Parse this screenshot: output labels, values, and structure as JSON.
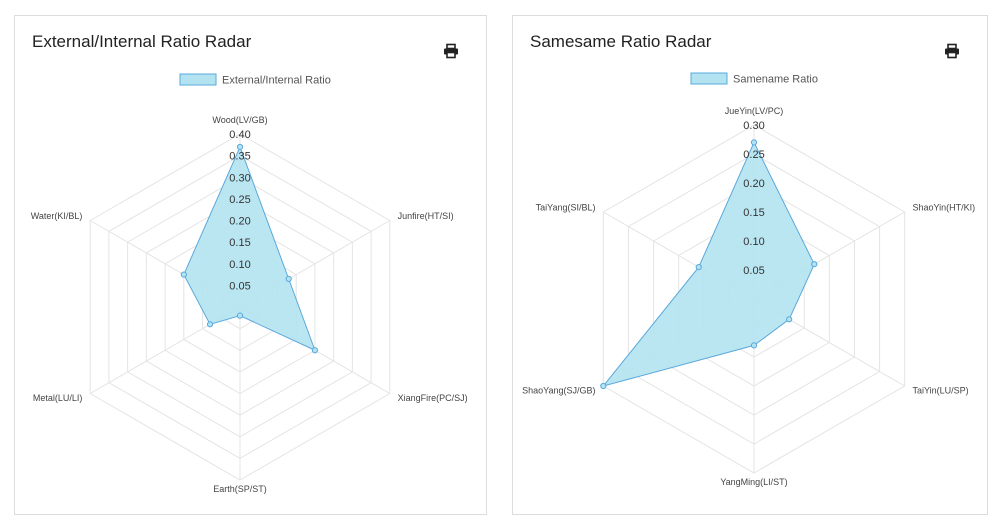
{
  "charts": [
    {
      "card_title": "External/Internal Ratio Radar",
      "print_icon": "printer-icon",
      "chart_data": {
        "type": "radar",
        "title": "External/Internal Ratio Radar",
        "categories": [
          "Wood(LV/GB)",
          "Junfire(HT/SI)",
          "XiangFire(PC/SJ)",
          "Earth(SP/ST)",
          "Metal(LU/LI)",
          "Water(KI/BL)"
        ],
        "series": [
          {
            "name": "External/Internal Ratio",
            "values": [
              0.37,
              0.13,
              0.2,
              0.02,
              0.08,
              0.15
            ]
          }
        ],
        "ticks": [
          "0.05",
          "0.10",
          "0.15",
          "0.20",
          "0.25",
          "0.30",
          "0.35",
          "0.40"
        ],
        "rmax": 0.4,
        "fill_color": "#b3e3f1",
        "line_color": "#5aa8dc",
        "grid": true,
        "legend_position": "top"
      }
    },
    {
      "card_title": "Samesame Ratio Radar",
      "print_icon": "printer-icon",
      "chart_data": {
        "type": "radar",
        "title": "Samesame Ratio Radar",
        "categories": [
          "JueYin(LV/PC)",
          "ShaoYin(HT/KI)",
          "TaiYin(LU/SP)",
          "YangMing(LI/ST)",
          "ShaoYang(SJ/GB)",
          "TaiYang(SI/BL)"
        ],
        "series": [
          {
            "name": "Samename Ratio",
            "values": [
              0.27,
              0.12,
              0.07,
              0.08,
              0.3,
              0.11
            ]
          }
        ],
        "ticks": [
          "0.05",
          "0.10",
          "0.15",
          "0.20",
          "0.25",
          "0.30"
        ],
        "rmax": 0.3,
        "fill_color": "#b3e3f1",
        "line_color": "#5aa8dc",
        "grid": true,
        "legend_position": "top"
      }
    }
  ]
}
